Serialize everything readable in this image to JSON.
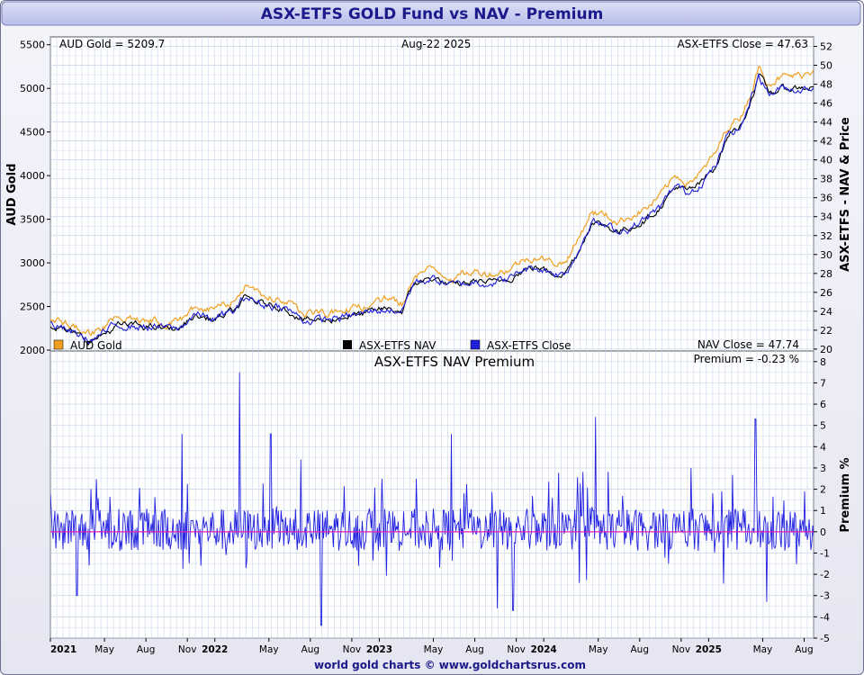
{
  "title": "ASX-ETFS GOLD Fund vs NAV - Premium",
  "footer": "world gold charts © www.goldchartsrus.com",
  "colors": {
    "gold": "#f0a020",
    "nav": "#000000",
    "close": "#1f1fd8",
    "premium": "#2020e0",
    "zero_line": "#e020b0",
    "grid": "#c8d4e8",
    "title_bar": "#c0c4ec"
  },
  "chart_data": [
    {
      "type": "line",
      "name": "price-panel",
      "date_range": [
        "2021-01-01",
        "2025-08-22"
      ],
      "annotations": {
        "gold_label": "AUD Gold = 5209.7",
        "date_label": "Aug-22  2025",
        "close_label": "ASX-ETFS Close = 47.63",
        "nav_label": "NAV Close = 47.74"
      },
      "ylabel_left": "AUD Gold",
      "ylabel_right": "ASX-ETFS - NAV & Price",
      "ylim_left": [
        1990,
        5590
      ],
      "ylim_right": [
        19.8,
        53.0
      ],
      "yticks_left": [
        2000,
        2500,
        3000,
        3500,
        4000,
        4500,
        5000,
        5500
      ],
      "yticks_right": [
        20,
        22,
        24,
        26,
        28,
        30,
        32,
        34,
        36,
        38,
        40,
        42,
        44,
        46,
        48,
        50,
        52
      ],
      "grid": true,
      "legend": [
        "AUD Gold",
        "ASX-ETFS NAV",
        "ASX-ETFS Close"
      ],
      "legend_placement": "bottom",
      "series": [
        {
          "name": "AUD Gold",
          "axis": "left",
          "x": [
            "2021-01-01",
            "2021-02-15",
            "2021-04-01",
            "2021-06-01",
            "2021-07-15",
            "2021-09-01",
            "2021-10-15",
            "2021-11-15",
            "2022-01-01",
            "2022-02-15",
            "2022-03-10",
            "2022-04-15",
            "2022-06-01",
            "2022-07-20",
            "2022-09-01",
            "2022-10-20",
            "2022-12-01",
            "2023-01-15",
            "2023-02-20",
            "2023-03-20",
            "2023-05-01",
            "2023-06-15",
            "2023-08-01",
            "2023-09-15",
            "2023-10-20",
            "2023-11-15",
            "2023-12-15",
            "2024-01-15",
            "2024-02-15",
            "2024-03-15",
            "2024-04-15",
            "2024-05-20",
            "2024-06-15",
            "2024-07-15",
            "2024-08-15",
            "2024-09-15",
            "2024-10-20",
            "2024-11-15",
            "2024-12-15",
            "2025-01-15",
            "2025-02-15",
            "2025-03-15",
            "2025-04-10",
            "2025-04-22",
            "2025-05-15",
            "2025-06-15",
            "2025-07-15",
            "2025-08-22"
          ],
          "y": [
            2390,
            2280,
            2170,
            2380,
            2360,
            2330,
            2330,
            2500,
            2450,
            2560,
            2720,
            2640,
            2600,
            2430,
            2420,
            2470,
            2500,
            2580,
            2530,
            2880,
            2930,
            2830,
            2900,
            2880,
            2940,
            3030,
            3080,
            3010,
            3000,
            3240,
            3590,
            3540,
            3470,
            3550,
            3620,
            3760,
            4000,
            3930,
            4030,
            4240,
            4580,
            4700,
            5030,
            5240,
            5080,
            5130,
            5140,
            5209.7
          ]
        },
        {
          "name": "ASX-ETFS NAV",
          "axis": "right",
          "x": [
            "2021-01-01",
            "2021-02-15",
            "2021-04-01",
            "2021-06-01",
            "2021-07-15",
            "2021-09-01",
            "2021-10-15",
            "2021-11-15",
            "2022-01-01",
            "2022-02-15",
            "2022-03-10",
            "2022-04-15",
            "2022-06-01",
            "2022-07-20",
            "2022-09-01",
            "2022-10-20",
            "2022-12-01",
            "2023-01-15",
            "2023-02-20",
            "2023-03-20",
            "2023-05-01",
            "2023-06-15",
            "2023-08-01",
            "2023-09-15",
            "2023-10-20",
            "2023-11-15",
            "2023-12-15",
            "2024-01-15",
            "2024-02-15",
            "2024-03-15",
            "2024-04-15",
            "2024-05-20",
            "2024-06-15",
            "2024-07-15",
            "2024-08-15",
            "2024-09-15",
            "2024-10-20",
            "2024-11-15",
            "2024-12-15",
            "2025-01-15",
            "2025-02-15",
            "2025-03-15",
            "2025-04-10",
            "2025-04-22",
            "2025-05-15",
            "2025-06-15",
            "2025-07-15",
            "2025-08-22"
          ],
          "y": [
            22.6,
            21.7,
            20.8,
            22.5,
            22.5,
            22.2,
            22.2,
            23.5,
            23.1,
            24.1,
            25.4,
            24.8,
            24.4,
            23.1,
            23.0,
            23.5,
            23.7,
            24.3,
            24.0,
            27.0,
            27.5,
            26.6,
            27.2,
            27.0,
            27.6,
            28.3,
            28.7,
            28.1,
            28.0,
            30.0,
            33.4,
            33.0,
            32.4,
            33.0,
            33.7,
            35.0,
            37.2,
            36.6,
            37.5,
            39.3,
            42.7,
            43.7,
            47.0,
            49.0,
            47.1,
            47.5,
            47.6,
            47.74
          ]
        },
        {
          "name": "ASX-ETFS Close",
          "axis": "right",
          "x": [
            "2021-01-01",
            "2021-02-15",
            "2021-04-01",
            "2021-06-01",
            "2021-07-15",
            "2021-09-01",
            "2021-10-15",
            "2021-11-15",
            "2022-01-01",
            "2022-02-15",
            "2022-03-10",
            "2022-04-15",
            "2022-06-01",
            "2022-07-20",
            "2022-09-01",
            "2022-10-20",
            "2022-12-01",
            "2023-01-15",
            "2023-02-20",
            "2023-03-20",
            "2023-05-01",
            "2023-06-15",
            "2023-08-01",
            "2023-09-15",
            "2023-10-20",
            "2023-11-15",
            "2023-12-15",
            "2024-01-15",
            "2024-02-15",
            "2024-03-15",
            "2024-04-15",
            "2024-05-20",
            "2024-06-15",
            "2024-07-15",
            "2024-08-15",
            "2024-09-15",
            "2024-10-20",
            "2024-11-15",
            "2024-12-15",
            "2025-01-15",
            "2025-02-15",
            "2025-03-15",
            "2025-04-10",
            "2025-04-22",
            "2025-05-15",
            "2025-06-15",
            "2025-07-15",
            "2025-08-22"
          ],
          "y": [
            22.7,
            21.8,
            20.9,
            22.6,
            22.4,
            22.3,
            22.1,
            23.7,
            23.2,
            24.0,
            25.6,
            24.7,
            24.5,
            23.0,
            23.1,
            23.4,
            23.8,
            24.2,
            24.1,
            27.1,
            27.4,
            26.7,
            27.1,
            27.1,
            27.5,
            28.4,
            28.6,
            28.2,
            27.9,
            30.1,
            33.6,
            32.9,
            32.5,
            32.9,
            33.8,
            34.9,
            37.3,
            36.5,
            37.6,
            39.2,
            42.8,
            43.6,
            47.2,
            49.1,
            47.0,
            47.6,
            47.5,
            47.63
          ]
        }
      ]
    },
    {
      "type": "line",
      "name": "premium-panel",
      "title": "ASX-ETFS NAV Premium",
      "premium_label": "Premium = -0.23 %",
      "ylabel_right": "Premium %",
      "ylim": [
        -5,
        8.5
      ],
      "yticks": [
        -5,
        -4,
        -3,
        -2,
        -1,
        0,
        1,
        2,
        3,
        4,
        5,
        6,
        7,
        8
      ],
      "grid": true,
      "baseline": 0,
      "x_ticks": [
        {
          "label": "2021",
          "date": "2021-01-01",
          "year": true
        },
        {
          "label": "May",
          "date": "2021-05-01"
        },
        {
          "label": "Aug",
          "date": "2021-08-01"
        },
        {
          "label": "Nov",
          "date": "2021-11-01"
        },
        {
          "label": "2022",
          "date": "2022-01-01",
          "year": true
        },
        {
          "label": "May",
          "date": "2022-05-01"
        },
        {
          "label": "Aug",
          "date": "2022-08-01"
        },
        {
          "label": "Nov",
          "date": "2022-11-01"
        },
        {
          "label": "2023",
          "date": "2023-01-01",
          "year": true
        },
        {
          "label": "May",
          "date": "2023-05-01"
        },
        {
          "label": "Aug",
          "date": "2023-08-01"
        },
        {
          "label": "Nov",
          "date": "2023-11-01"
        },
        {
          "label": "2024",
          "date": "2024-01-01",
          "year": true
        },
        {
          "label": "May",
          "date": "2024-05-01"
        },
        {
          "label": "Aug",
          "date": "2024-08-01"
        },
        {
          "label": "Nov",
          "date": "2024-11-01"
        },
        {
          "label": "2025",
          "date": "2025-01-01",
          "year": true
        },
        {
          "label": "May",
          "date": "2025-05-01"
        },
        {
          "label": "Aug",
          "date": "2025-08-01"
        }
      ],
      "spikes": [
        {
          "date": "2021-03-01",
          "value": -3.0
        },
        {
          "date": "2021-10-20",
          "value": 4.6
        },
        {
          "date": "2022-02-25",
          "value": 7.5
        },
        {
          "date": "2022-05-05",
          "value": 4.6
        },
        {
          "date": "2022-08-25",
          "value": -4.4
        },
        {
          "date": "2023-06-10",
          "value": 4.6
        },
        {
          "date": "2023-09-20",
          "value": -3.6
        },
        {
          "date": "2023-10-25",
          "value": -3.7
        },
        {
          "date": "2024-04-25",
          "value": 5.4
        },
        {
          "date": "2024-03-20",
          "value": -2.4
        },
        {
          "date": "2025-04-15",
          "value": 5.3
        },
        {
          "date": "2025-05-10",
          "value": -3.3
        },
        {
          "date": "2025-08-22",
          "value": -0.23
        }
      ]
    }
  ]
}
